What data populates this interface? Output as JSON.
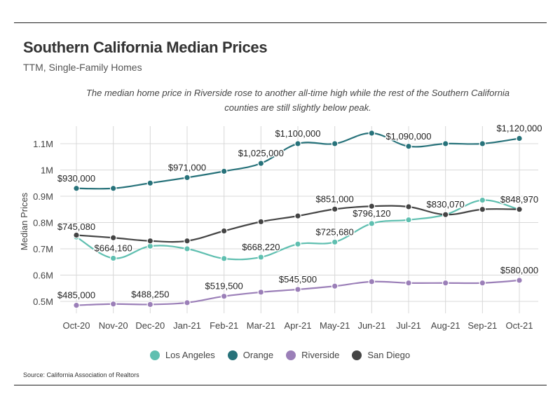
{
  "header": {
    "title": "Southern California Median Prices",
    "subtitle": "TTM, Single-Family Homes",
    "annotation": "The median home price in Riverside rose to another all-time high while the rest of the Southern California counties are still slightly below peak."
  },
  "source": "Source:  California Association of Realtors",
  "chart_data": {
    "type": "line",
    "title": "Southern California Median Prices",
    "subtitle": "TTM, Single-Family Homes",
    "ylabel": "Median Prices",
    "xlabel": "",
    "categories": [
      "Oct-20",
      "Nov-20",
      "Dec-20",
      "Jan-21",
      "Feb-21",
      "Mar-21",
      "Apr-21",
      "May-21",
      "Jun-21",
      "Jul-21",
      "Aug-21",
      "Sep-21",
      "Oct-21"
    ],
    "ylim": [
      0.45,
      1.16
    ],
    "yticks": [
      0.5,
      0.6,
      0.7,
      0.8,
      0.9,
      1.0,
      1.1
    ],
    "ytick_labels": [
      "0.5M",
      "0.6M",
      "0.7M",
      "0.8M",
      "0.9M",
      "1M",
      "1.1M"
    ],
    "grid": true,
    "legend_position": "bottom",
    "series": [
      {
        "name": "Los Angeles",
        "color": "#5fbfb0",
        "values": [
          0.74508,
          0.66416,
          0.71,
          0.7,
          0.663,
          0.66822,
          0.718,
          0.72568,
          0.79612,
          0.81,
          0.83,
          0.885,
          0.84897
        ],
        "labels": {
          "0": "$745,080",
          "1": "$664,160",
          "5": "$668,220",
          "7": "$725,680",
          "8": "$796,120",
          "12": "$848,970"
        }
      },
      {
        "name": "Orange",
        "color": "#27727a",
        "values": [
          0.93,
          0.93,
          0.95,
          0.971,
          0.995,
          1.025,
          1.1,
          1.1,
          1.14,
          1.09,
          1.1,
          1.1,
          1.12
        ],
        "labels": {
          "0": "$930,000",
          "3": "$971,000",
          "5": "$1,025,000",
          "6": "$1,100,000",
          "9": "$1,090,000",
          "12": "$1,120,000"
        }
      },
      {
        "name": "Riverside",
        "color": "#9b7fb8",
        "values": [
          0.485,
          0.49,
          0.48825,
          0.495,
          0.5195,
          0.535,
          0.5455,
          0.558,
          0.575,
          0.57,
          0.57,
          0.57,
          0.58
        ],
        "labels": {
          "0": "$485,000",
          "2": "$488,250",
          "4": "$519,500",
          "6": "$545,500",
          "12": "$580,000"
        }
      },
      {
        "name": "San Diego",
        "color": "#444444",
        "values": [
          0.752,
          0.742,
          0.73,
          0.73,
          0.768,
          0.803,
          0.825,
          0.851,
          0.862,
          0.86,
          0.83007,
          0.85,
          0.85
        ],
        "labels": {
          "7": "$851,000",
          "10": "$830,070"
        }
      }
    ]
  }
}
